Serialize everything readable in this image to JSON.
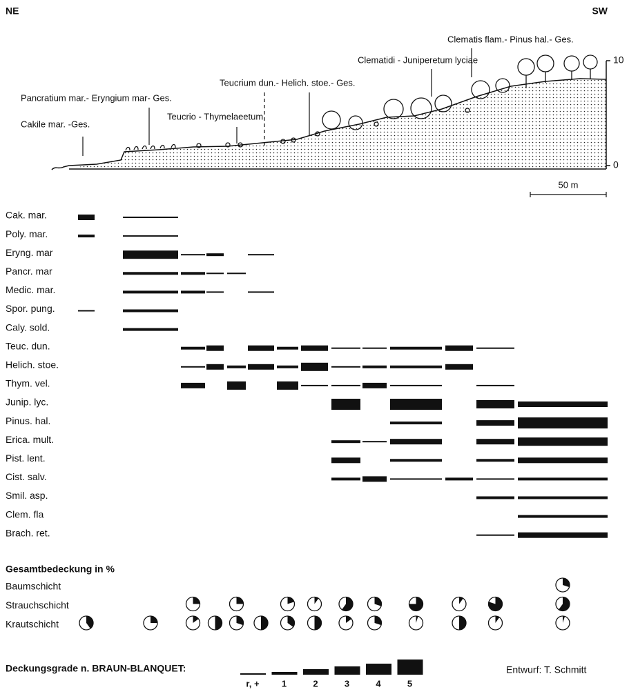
{
  "header": {
    "left": "NE",
    "right": "SW"
  },
  "profile": {
    "labels": [
      "Cakile mar. -Ges.",
      "Pancratium mar.- Eryngium mar- Ges.",
      "Teucrio - Thymelaeetum",
      "Teucrium dun.- Helich. stoe.- Ges.",
      "Clematidi - Juniperetum  lyciae",
      "Clematis flam.- Pinus hal.- Ges."
    ],
    "height_ticks": [
      10,
      0
    ],
    "scale_label": "50 m"
  },
  "species": {
    "rows": [
      {
        "name": "Cak. mar.",
        "cover": [
          2,
          0,
          null,
          null,
          null,
          null,
          null,
          null,
          null,
          null,
          null,
          null,
          null,
          null
        ]
      },
      {
        "name": "Poly. mar.",
        "cover": [
          1,
          0,
          null,
          null,
          null,
          null,
          null,
          null,
          null,
          null,
          null,
          null,
          null,
          null
        ]
      },
      {
        "name": "Eryng. mar",
        "cover": [
          null,
          3,
          0,
          1,
          null,
          0,
          null,
          null,
          null,
          null,
          null,
          null,
          null,
          null
        ]
      },
      {
        "name": "Pancr. mar",
        "cover": [
          null,
          1,
          1,
          0,
          0,
          null,
          null,
          null,
          null,
          null,
          null,
          null,
          null,
          null
        ]
      },
      {
        "name": "Medic. mar.",
        "cover": [
          null,
          1,
          1,
          0,
          null,
          0,
          null,
          null,
          null,
          null,
          null,
          null,
          null,
          null
        ]
      },
      {
        "name": "Spor. pung.",
        "cover": [
          0,
          1,
          null,
          null,
          null,
          null,
          null,
          null,
          null,
          null,
          null,
          null,
          null,
          null
        ]
      },
      {
        "name": "Caly. sold.",
        "cover": [
          null,
          1,
          null,
          null,
          null,
          null,
          null,
          null,
          null,
          null,
          null,
          null,
          null,
          null
        ]
      },
      {
        "name": "Teuc. dun.",
        "cover": [
          null,
          null,
          1,
          2,
          null,
          2,
          1,
          2,
          0,
          0,
          1,
          2,
          0,
          null
        ]
      },
      {
        "name": "Helich. stoe.",
        "cover": [
          null,
          null,
          0,
          2,
          1,
          2,
          1,
          3,
          0,
          1,
          1,
          2,
          null,
          null
        ]
      },
      {
        "name": "Thym. vel.",
        "cover": [
          null,
          null,
          2,
          null,
          3,
          null,
          3,
          0,
          0,
          2,
          0,
          null,
          0,
          null
        ]
      },
      {
        "name": "Junip. lyc.",
        "cover": [
          null,
          null,
          null,
          null,
          null,
          null,
          null,
          null,
          4,
          null,
          4,
          null,
          3,
          2
        ]
      },
      {
        "name": "Pinus. hal.",
        "cover": [
          null,
          null,
          null,
          null,
          null,
          null,
          null,
          null,
          null,
          null,
          1,
          null,
          2,
          4
        ]
      },
      {
        "name": "Erica. mult.",
        "cover": [
          null,
          null,
          null,
          null,
          null,
          null,
          null,
          null,
          1,
          0,
          2,
          null,
          2,
          3
        ]
      },
      {
        "name": "Pist. lent.",
        "cover": [
          null,
          null,
          null,
          null,
          null,
          null,
          null,
          null,
          2,
          null,
          1,
          null,
          1,
          2
        ]
      },
      {
        "name": "Cist. salv.",
        "cover": [
          null,
          null,
          null,
          null,
          null,
          null,
          null,
          null,
          1,
          2,
          0,
          1,
          0,
          1
        ]
      },
      {
        "name": "Smil. asp.",
        "cover": [
          null,
          null,
          null,
          null,
          null,
          null,
          null,
          null,
          null,
          null,
          null,
          null,
          1,
          1
        ]
      },
      {
        "name": "Clem. fla",
        "cover": [
          null,
          null,
          null,
          null,
          null,
          null,
          null,
          null,
          null,
          null,
          null,
          null,
          null,
          1
        ]
      },
      {
        "name": "Brach. ret.",
        "cover": [
          null,
          null,
          null,
          null,
          null,
          null,
          null,
          null,
          null,
          null,
          null,
          null,
          0,
          2
        ]
      }
    ]
  },
  "total_cover": {
    "title": "Gesamtbedeckung in  %",
    "layers": [
      {
        "name": "Baumschicht",
        "values": [
          null,
          null,
          null,
          null,
          null,
          null,
          null,
          null,
          null,
          null,
          null,
          null,
          null,
          30
        ]
      },
      {
        "name": "Strauchschicht",
        "values": [
          null,
          null,
          25,
          null,
          25,
          null,
          20,
          10,
          60,
          30,
          75,
          10,
          80,
          60
        ]
      },
      {
        "name": "Krautschicht",
        "values": [
          40,
          25,
          15,
          50,
          30,
          50,
          35,
          50,
          15,
          30,
          5,
          50,
          10,
          5
        ]
      }
    ]
  },
  "cover_classes": {
    "title": "Deckungsgrade n. BRAUN-BLANQUET:",
    "classes": [
      {
        "value": 0,
        "label": "r, +"
      },
      1,
      2,
      3,
      4,
      5
    ]
  },
  "credit": "Entwurf: T. Schmitt"
}
